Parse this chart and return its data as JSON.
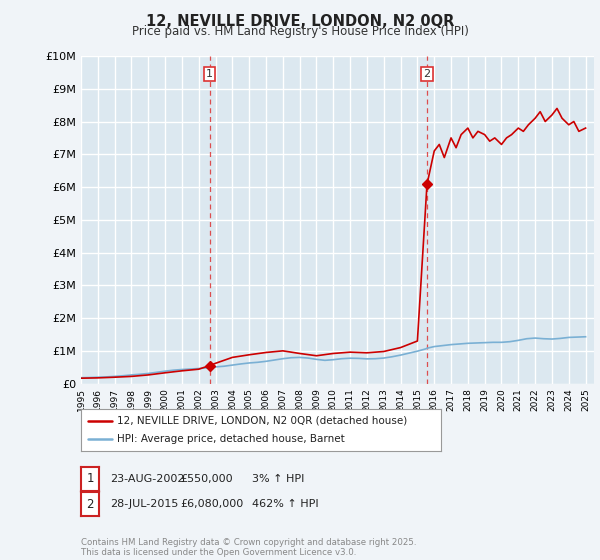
{
  "title": "12, NEVILLE DRIVE, LONDON, N2 0QR",
  "subtitle": "Price paid vs. HM Land Registry's House Price Index (HPI)",
  "ylim": [
    0,
    10000000
  ],
  "yticks": [
    0,
    1000000,
    2000000,
    3000000,
    4000000,
    5000000,
    6000000,
    7000000,
    8000000,
    9000000,
    10000000
  ],
  "ytick_labels": [
    "£0",
    "£1M",
    "£2M",
    "£3M",
    "£4M",
    "£5M",
    "£6M",
    "£7M",
    "£8M",
    "£9M",
    "£10M"
  ],
  "fig_bg_color": "#f0f4f8",
  "plot_bg_color": "#dce8f0",
  "grid_color": "#ffffff",
  "sale1_date": 2002.64,
  "sale1_price": 550000,
  "sale1_label": "1",
  "sale2_date": 2015.57,
  "sale2_price": 6080000,
  "sale2_label": "2",
  "vline_color": "#dd3333",
  "legend_line1": "12, NEVILLE DRIVE, LONDON, N2 0QR (detached house)",
  "legend_line2": "HPI: Average price, detached house, Barnet",
  "annotation1_date": "23-AUG-2002",
  "annotation1_price": "£550,000",
  "annotation1_hpi": "3% ↑ HPI",
  "annotation2_date": "28-JUL-2015",
  "annotation2_price": "£6,080,000",
  "annotation2_hpi": "462% ↑ HPI",
  "copyright_text": "Contains HM Land Registry data © Crown copyright and database right 2025.\nThis data is licensed under the Open Government Licence v3.0.",
  "red_line_color": "#cc0000",
  "blue_line_color": "#7ab0d4",
  "marker_color": "#cc0000",
  "hpi_data_years": [
    1995.0,
    1995.5,
    1996.0,
    1996.5,
    1997.0,
    1997.5,
    1998.0,
    1998.5,
    1999.0,
    1999.5,
    2000.0,
    2000.5,
    2001.0,
    2001.5,
    2002.0,
    2002.5,
    2002.64,
    2003.0,
    2003.5,
    2004.0,
    2004.5,
    2005.0,
    2005.5,
    2006.0,
    2006.5,
    2007.0,
    2007.5,
    2008.0,
    2008.5,
    2009.0,
    2009.5,
    2010.0,
    2010.5,
    2011.0,
    2011.5,
    2012.0,
    2012.5,
    2013.0,
    2013.5,
    2014.0,
    2014.5,
    2015.0,
    2015.5,
    2015.57,
    2016.0,
    2016.5,
    2017.0,
    2017.5,
    2018.0,
    2018.5,
    2019.0,
    2019.5,
    2020.0,
    2020.5,
    2021.0,
    2021.5,
    2022.0,
    2022.5,
    2023.0,
    2023.5,
    2024.0,
    2024.5,
    2025.0
  ],
  "hpi_data_vals": [
    180000,
    185000,
    195000,
    205000,
    220000,
    240000,
    265000,
    285000,
    310000,
    345000,
    380000,
    410000,
    430000,
    445000,
    460000,
    480000,
    490000,
    510000,
    530000,
    565000,
    600000,
    630000,
    650000,
    680000,
    720000,
    760000,
    790000,
    800000,
    780000,
    740000,
    710000,
    730000,
    760000,
    775000,
    770000,
    755000,
    760000,
    780000,
    820000,
    870000,
    930000,
    990000,
    1060000,
    1080000,
    1130000,
    1160000,
    1190000,
    1210000,
    1230000,
    1240000,
    1250000,
    1260000,
    1260000,
    1280000,
    1320000,
    1370000,
    1390000,
    1370000,
    1360000,
    1380000,
    1410000,
    1420000,
    1430000
  ],
  "price_data_years": [
    1995.0,
    1996.0,
    1997.0,
    1998.0,
    1999.0,
    2000.0,
    2001.0,
    2002.0,
    2002.64,
    2003.0,
    2004.0,
    2005.0,
    2006.0,
    2007.0,
    2008.0,
    2009.0,
    2010.0,
    2011.0,
    2012.0,
    2013.0,
    2014.0,
    2014.5,
    2015.0,
    2015.57,
    2016.0,
    2016.3,
    2016.6,
    2017.0,
    2017.3,
    2017.6,
    2018.0,
    2018.3,
    2018.6,
    2019.0,
    2019.3,
    2019.6,
    2020.0,
    2020.3,
    2020.6,
    2021.0,
    2021.3,
    2021.6,
    2022.0,
    2022.3,
    2022.6,
    2023.0,
    2023.3,
    2023.6,
    2024.0,
    2024.3,
    2024.6,
    2025.0
  ],
  "price_data_vals": [
    165000,
    175000,
    195000,
    220000,
    265000,
    330000,
    390000,
    440000,
    550000,
    620000,
    800000,
    880000,
    950000,
    1000000,
    920000,
    850000,
    920000,
    960000,
    940000,
    980000,
    1100000,
    1200000,
    1300000,
    6080000,
    7100000,
    7300000,
    6900000,
    7500000,
    7200000,
    7600000,
    7800000,
    7500000,
    7700000,
    7600000,
    7400000,
    7500000,
    7300000,
    7500000,
    7600000,
    7800000,
    7700000,
    7900000,
    8100000,
    8300000,
    8000000,
    8200000,
    8400000,
    8100000,
    7900000,
    8000000,
    7700000,
    7800000
  ]
}
